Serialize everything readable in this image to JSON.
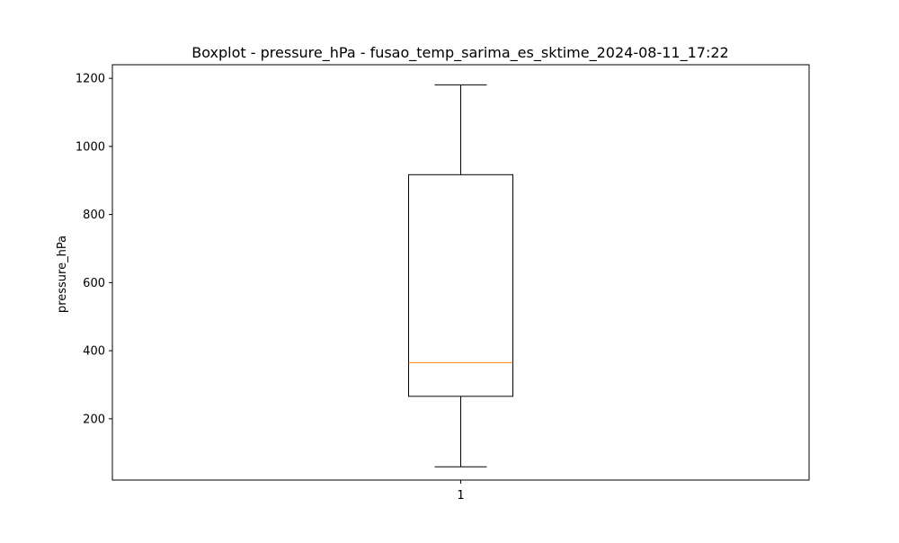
{
  "chart_data": {
    "type": "box",
    "title": "Boxplot - pressure_hPa - fusao_temp_sarima_es_sktime_2024-08-11_17:22",
    "xlabel": "",
    "ylabel": "pressure_hPa",
    "categories": [
      "1"
    ],
    "ylim": [
      20,
      1240
    ],
    "yticks": [
      200,
      400,
      600,
      800,
      1000,
      1200
    ],
    "ytick_labels": [
      "200",
      "400",
      "600",
      "800",
      "1000",
      "1200"
    ],
    "boxes": [
      {
        "category": "1",
        "whisker_low": 59,
        "q1": 266,
        "median": 365,
        "q3": 917,
        "whisker_high": 1181
      }
    ],
    "grid": false,
    "colors": {
      "box": "#000000",
      "median": "#ff7f0e",
      "whisker": "#000000",
      "axes": "#000000"
    }
  }
}
